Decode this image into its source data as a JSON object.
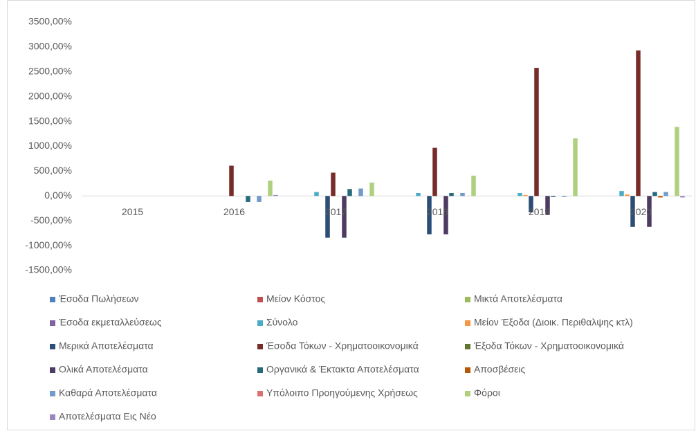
{
  "chart_data": {
    "type": "bar",
    "categories": [
      "2015",
      "2016",
      "2017",
      "2018",
      "2019",
      "2020"
    ],
    "series": [
      {
        "name": "Έσοδα Πωλήσεων",
        "color": "#4f81bd",
        "values": [
          0,
          0,
          0,
          0,
          0,
          0
        ]
      },
      {
        "name": "Μείον Κόστος",
        "color": "#c0504d",
        "values": [
          0,
          0,
          0,
          0,
          0,
          0
        ]
      },
      {
        "name": "Μικτά Αποτελέσματα",
        "color": "#9bbb59",
        "values": [
          0,
          0,
          0,
          0,
          0,
          0
        ]
      },
      {
        "name": "Έσοδα εκμεταλλεύσεως",
        "color": "#8064a2",
        "values": [
          0,
          0,
          0,
          0,
          0,
          0
        ]
      },
      {
        "name": "Σύνολο",
        "color": "#4bacc6",
        "values": [
          0,
          0,
          80,
          60,
          60,
          100
        ]
      },
      {
        "name": "Μείον Έξοδα (Διοικ. Περιθαλψης κτλ)",
        "color": "#f79646",
        "values": [
          0,
          0,
          0,
          0,
          20,
          30
        ]
      },
      {
        "name": "Μερικά Αποτελέσματα",
        "color": "#2c4d75",
        "values": [
          0,
          0,
          -840,
          -770,
          -330,
          -620
        ]
      },
      {
        "name": "Έσοδα Τόκων - Χρηματοοικονομικά",
        "color": "#772c2a",
        "values": [
          0,
          610,
          470,
          970,
          2580,
          2930
        ]
      },
      {
        "name": "Έξοδα Τόκων - Χρηματοοικονομικά",
        "color": "#5f7530",
        "values": [
          0,
          0,
          0,
          0,
          0,
          0
        ]
      },
      {
        "name": "Ολικά Αποτελέσματα",
        "color": "#4d3b62",
        "values": [
          0,
          0,
          -840,
          -770,
          -380,
          -620
        ]
      },
      {
        "name": "Οργανικά & Έκτακτα Αποτελέσματα",
        "color": "#276a7c",
        "values": [
          0,
          -120,
          140,
          60,
          -20,
          80
        ]
      },
      {
        "name": "Αποσβέσεις",
        "color": "#b65708",
        "values": [
          0,
          0,
          0,
          0,
          0,
          -30
        ]
      },
      {
        "name": "Καθαρά Αποτελέσματα",
        "color": "#729aca",
        "values": [
          0,
          -120,
          150,
          60,
          -20,
          80
        ]
      },
      {
        "name": "Υπόλοιπο Προηγούμενης Χρήσεως",
        "color": "#d9726f",
        "values": [
          0,
          0,
          0,
          0,
          0,
          0
        ]
      },
      {
        "name": "Φόροι",
        "color": "#afd07e",
        "values": [
          0,
          310,
          270,
          410,
          1160,
          1390
        ]
      },
      {
        "name": "Αποτελέσματα Εις Νέο",
        "color": "#9c85c0",
        "values": [
          0,
          20,
          0,
          0,
          0,
          -30
        ]
      }
    ],
    "ylim": [
      -1500,
      3500
    ],
    "yticks": [
      {
        "value": -1500,
        "label": "-1500,00%"
      },
      {
        "value": -1000,
        "label": "-1000,00%"
      },
      {
        "value": -500,
        "label": "-500,00%"
      },
      {
        "value": 0,
        "label": "0,00%"
      },
      {
        "value": 500,
        "label": "500,00%"
      },
      {
        "value": 1000,
        "label": "1000,00%"
      },
      {
        "value": 1500,
        "label": "1500,00%"
      },
      {
        "value": 2000,
        "label": "2000,00%"
      },
      {
        "value": 2500,
        "label": "2500,00%"
      },
      {
        "value": 3000,
        "label": "3000,00%"
      },
      {
        "value": 3500,
        "label": "3500,00%"
      }
    ],
    "grid": false
  }
}
